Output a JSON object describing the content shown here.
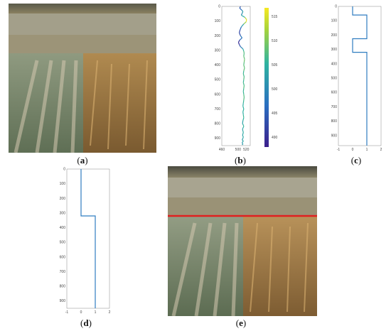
{
  "captions": {
    "a": "a",
    "b": "b",
    "c": "c",
    "d": "d",
    "e": "e"
  },
  "colors": {
    "line": "#2f7dc0",
    "red_line": "#e02020",
    "straw": "#c49a55"
  },
  "chart_data": [
    {
      "panel": "b",
      "type": "line",
      "orientation": "vertical-profile",
      "x_ticks": [
        "460",
        "500",
        "520"
      ],
      "y_ticks": [
        "0",
        "100",
        "200",
        "300",
        "400",
        "500",
        "600",
        "700",
        "800",
        "900"
      ],
      "colorbar_ticks": [
        "515",
        "510",
        "505",
        "500",
        "495",
        "490"
      ],
      "xlim": [
        460,
        530
      ],
      "ylim": [
        0,
        950
      ],
      "x": [
        506,
        504,
        509,
        512,
        510,
        508,
        517,
        521,
        520,
        514,
        508,
        505,
        503,
        506,
        510,
        504,
        501,
        503,
        506,
        512,
        514,
        515,
        514,
        516,
        515,
        514,
        516,
        514,
        513,
        515,
        514,
        513,
        515,
        514,
        513,
        514,
        515,
        514,
        513,
        512,
        514,
        512,
        513,
        514,
        512,
        511,
        513,
        514,
        512,
        511,
        512,
        513,
        512,
        511,
        513,
        512,
        510,
        512,
        513,
        511,
        510,
        511,
        512,
        510
      ],
      "y": [
        0,
        12,
        25,
        35,
        48,
        60,
        75,
        90,
        105,
        120,
        140,
        160,
        180,
        200,
        215,
        230,
        245,
        260,
        275,
        290,
        305,
        320,
        340,
        360,
        380,
        400,
        420,
        440,
        460,
        480,
        500,
        520,
        540,
        560,
        580,
        600,
        620,
        640,
        660,
        680,
        700,
        720,
        740,
        760,
        780,
        800,
        810,
        820,
        830,
        840,
        850,
        860,
        870,
        880,
        890,
        900,
        910,
        915,
        920,
        925,
        930,
        935,
        940,
        945
      ]
    },
    {
      "panel": "c",
      "type": "line",
      "orientation": "vertical-step",
      "x_ticks": [
        "-1",
        "0",
        "1",
        "2"
      ],
      "y_ticks": [
        "0",
        "100",
        "200",
        "300",
        "400",
        "500",
        "600",
        "700",
        "800",
        "900"
      ],
      "xlim": [
        -1,
        2
      ],
      "ylim": [
        0,
        970
      ],
      "x": [
        0,
        0,
        1,
        1,
        0,
        0,
        1,
        1
      ],
      "y": [
        0,
        60,
        60,
        225,
        225,
        320,
        320,
        970
      ]
    },
    {
      "panel": "d",
      "type": "line",
      "orientation": "vertical-step",
      "x_ticks": [
        "-1",
        "0",
        "1",
        "2"
      ],
      "y_ticks": [
        "0",
        "100",
        "200",
        "300",
        "400",
        "500",
        "600",
        "700",
        "800",
        "900"
      ],
      "xlim": [
        -1,
        2
      ],
      "ylim": [
        0,
        950
      ],
      "x": [
        0,
        0,
        1,
        1
      ],
      "y": [
        0,
        320,
        320,
        950
      ]
    }
  ]
}
